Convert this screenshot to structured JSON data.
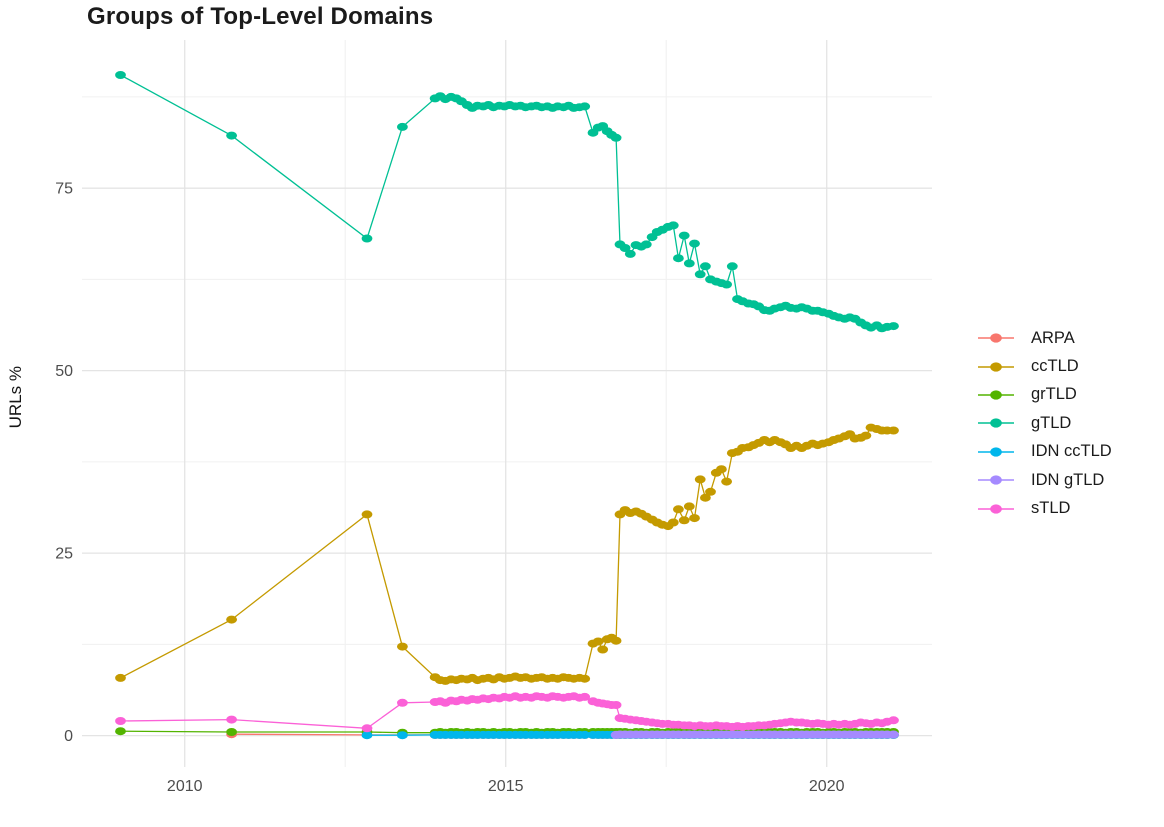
{
  "title": "Groups of Top-Level Domains",
  "chart_data": {
    "type": "line",
    "title": "Groups of Top-Level Domains",
    "xlabel": "",
    "ylabel": "URLs %",
    "legend_position": "right",
    "grid": true,
    "x_range": [
      2008.4,
      2021.64
    ],
    "y_range": [
      -4.3,
      95.3
    ],
    "x_ticks": [
      2010,
      2015,
      2020
    ],
    "x_tick_labels": [
      "2010",
      "2015",
      "2020"
    ],
    "x_minor": [
      2012.5,
      2017.5
    ],
    "y_ticks": [
      0,
      25,
      50,
      75
    ],
    "y_tick_labels": [
      "0",
      "25",
      "50",
      "75"
    ],
    "y_minor": [
      12.5,
      37.5,
      62.5,
      87.5
    ],
    "x": [
      2009,
      2010.73,
      2012.84,
      2013.39,
      2013.9,
      2013.98,
      2014.06,
      2014.15,
      2014.23,
      2014.31,
      2014.4,
      2014.48,
      2014.56,
      2014.65,
      2014.73,
      2014.81,
      2014.9,
      2014.98,
      2015.06,
      2015.15,
      2015.23,
      2015.31,
      2015.4,
      2015.48,
      2015.56,
      2015.65,
      2015.73,
      2015.81,
      2015.9,
      2015.98,
      2016.06,
      2016.15,
      2016.23,
      2016.36,
      2016.44,
      2016.51,
      2016.58,
      2016.65,
      2016.72,
      2016.78,
      2016.86,
      2016.94,
      2017.03,
      2017.11,
      2017.19,
      2017.28,
      2017.36,
      2017.44,
      2017.53,
      2017.61,
      2017.69,
      2017.78,
      2017.86,
      2017.94,
      2018.03,
      2018.11,
      2018.19,
      2018.28,
      2018.36,
      2018.44,
      2018.53,
      2018.61,
      2018.69,
      2018.78,
      2018.86,
      2018.94,
      2019.03,
      2019.11,
      2019.19,
      2019.28,
      2019.36,
      2019.44,
      2019.53,
      2019.61,
      2019.69,
      2019.78,
      2019.86,
      2019.94,
      2020.03,
      2020.11,
      2020.19,
      2020.28,
      2020.36,
      2020.44,
      2020.53,
      2020.61,
      2020.69,
      2020.78,
      2020.86,
      2020.94,
      2021.04
    ],
    "series": [
      {
        "name": "ARPA",
        "color": "#F8766D",
        "values": [
          null,
          0.2,
          0.1,
          0.1,
          0.1,
          0.1,
          0.1,
          0.1,
          0.1,
          0.1,
          0.1,
          0.1,
          0.1,
          0.1,
          0.1,
          0.1,
          0.1,
          0.1,
          0.1,
          0.1,
          0.1,
          0.1,
          0.1,
          0.1,
          0.1,
          0.1,
          0.1,
          0.1,
          0.1,
          0.1,
          0.1,
          0.1,
          0.1,
          0.1,
          0.1,
          0.1,
          0.1,
          0.1,
          0.1,
          0.1,
          0.1,
          0.1,
          0.1,
          0.1,
          0.1,
          0.1,
          0.1,
          0.1,
          0.1,
          0.1,
          0.1,
          0.1,
          0.1,
          0.1,
          0.1,
          0.1,
          0.1,
          0.1,
          0.1,
          0.1,
          0.1,
          0.1,
          0.1,
          0.1,
          0.1,
          0.1,
          0.1,
          0.1,
          0.1,
          0.1,
          0.1,
          0.1,
          0.1,
          0.1,
          0.1,
          0.1,
          0.1,
          0.1,
          0.1,
          0.1,
          0.1,
          0.1,
          0.1,
          0.1,
          0.1,
          0.1,
          0.1,
          0.1,
          0.1,
          0.1,
          0.1
        ]
      },
      {
        "name": "ccTLD",
        "color": "#C49A00",
        "values": [
          7.9,
          15.9,
          30.3,
          12.2,
          8.0,
          7.6,
          7.5,
          7.7,
          7.6,
          7.8,
          7.7,
          7.9,
          7.6,
          7.8,
          7.9,
          7.7,
          8.0,
          7.8,
          7.9,
          8.1,
          7.9,
          8.0,
          7.8,
          7.9,
          8.0,
          7.8,
          7.9,
          7.8,
          8.0,
          7.9,
          7.8,
          7.9,
          7.8,
          12.6,
          12.9,
          11.8,
          13.2,
          13.4,
          13.0,
          30.3,
          30.9,
          30.5,
          30.7,
          30.4,
          30.0,
          29.6,
          29.2,
          28.9,
          28.7,
          29.2,
          31.0,
          29.5,
          31.4,
          29.8,
          35.1,
          32.6,
          33.4,
          36.0,
          36.5,
          34.8,
          38.7,
          38.9,
          39.4,
          39.5,
          39.8,
          40.1,
          40.5,
          40.2,
          40.5,
          40.2,
          39.9,
          39.4,
          39.7,
          39.4,
          39.7,
          40.0,
          39.8,
          40.0,
          40.2,
          40.5,
          40.7,
          41.0,
          41.3,
          40.7,
          40.8,
          41.1,
          42.2,
          42.0,
          41.8,
          41.8,
          41.8
        ]
      },
      {
        "name": "grTLD",
        "color": "#53B400",
        "values": [
          0.6,
          0.5,
          0.5,
          0.4,
          0.4,
          0.5,
          0.4,
          0.5,
          0.5,
          0.4,
          0.5,
          0.4,
          0.5,
          0.5,
          0.4,
          0.5,
          0.4,
          0.5,
          0.5,
          0.4,
          0.5,
          0.5,
          0.4,
          0.5,
          0.4,
          0.5,
          0.5,
          0.4,
          0.5,
          0.5,
          0.4,
          0.5,
          0.5,
          0.5,
          0.5,
          0.5,
          0.5,
          0.5,
          0.5,
          0.5,
          0.5,
          0.4,
          0.5,
          0.5,
          0.4,
          0.5,
          0.5,
          0.4,
          0.5,
          0.5,
          0.5,
          0.4,
          0.5,
          0.5,
          0.4,
          0.5,
          0.4,
          0.5,
          0.5,
          0.4,
          0.5,
          0.5,
          0.5,
          0.4,
          0.5,
          0.5,
          0.4,
          0.5,
          0.5,
          0.5,
          0.4,
          0.5,
          0.5,
          0.4,
          0.5,
          0.5,
          0.5,
          0.4,
          0.5,
          0.5,
          0.4,
          0.5,
          0.5,
          0.5,
          0.4,
          0.5,
          0.5,
          0.5,
          0.5,
          0.5,
          0.5
        ]
      },
      {
        "name": "gTLD",
        "color": "#00C094",
        "values": [
          90.5,
          82.2,
          68.1,
          83.4,
          87.3,
          87.6,
          87.2,
          87.5,
          87.3,
          86.9,
          86.4,
          86.0,
          86.3,
          86.2,
          86.4,
          86.1,
          86.3,
          86.2,
          86.4,
          86.2,
          86.3,
          86.1,
          86.2,
          86.3,
          86.1,
          86.2,
          86.0,
          86.2,
          86.1,
          86.3,
          86.0,
          86.1,
          86.2,
          82.6,
          83.3,
          83.5,
          82.8,
          82.3,
          81.9,
          67.3,
          66.8,
          66.0,
          67.2,
          67.0,
          67.3,
          68.3,
          69.0,
          69.3,
          69.7,
          69.9,
          65.4,
          68.5,
          64.7,
          67.4,
          63.2,
          64.3,
          62.5,
          62.2,
          62.0,
          61.8,
          64.3,
          59.8,
          59.5,
          59.2,
          59.1,
          58.8,
          58.3,
          58.2,
          58.5,
          58.7,
          58.9,
          58.6,
          58.5,
          58.7,
          58.5,
          58.2,
          58.2,
          58.0,
          57.8,
          57.5,
          57.3,
          57.1,
          57.3,
          57.1,
          56.6,
          56.2,
          55.9,
          56.2,
          55.8,
          56.0,
          56.1
        ]
      },
      {
        "name": "IDN ccTLD",
        "color": "#00B6EB",
        "values": [
          null,
          null,
          0.05,
          0.05,
          0.1,
          0.1,
          0.1,
          0.1,
          0.1,
          0.1,
          0.1,
          0.1,
          0.1,
          0.1,
          0.1,
          0.1,
          0.1,
          0.1,
          0.1,
          0.1,
          0.1,
          0.1,
          0.1,
          0.1,
          0.1,
          0.1,
          0.1,
          0.1,
          0.1,
          0.1,
          0.1,
          0.1,
          0.1,
          0.1,
          0.1,
          0.1,
          0.1,
          0.1,
          0.1,
          0.1,
          0.1,
          0.1,
          0.1,
          0.1,
          0.1,
          0.1,
          0.1,
          0.1,
          0.1,
          0.1,
          0.1,
          0.1,
          0.1,
          0.1,
          0.1,
          0.1,
          0.1,
          0.1,
          0.1,
          0.1,
          0.1,
          0.1,
          0.1,
          0.1,
          0.1,
          0.1,
          0.1,
          0.1,
          0.1,
          0.1,
          0.1,
          0.1,
          0.1,
          0.1,
          0.1,
          0.1,
          0.1,
          0.1,
          0.1,
          0.1,
          0.1,
          0.1,
          0.1,
          0.1,
          0.1,
          0.1,
          0.1,
          0.1,
          0.1,
          0.1,
          0.1
        ]
      },
      {
        "name": "IDN gTLD",
        "color": "#A58AFF",
        "values": [
          null,
          null,
          null,
          null,
          null,
          null,
          null,
          null,
          null,
          null,
          null,
          null,
          null,
          null,
          null,
          null,
          null,
          null,
          null,
          null,
          null,
          null,
          null,
          null,
          null,
          null,
          null,
          null,
          null,
          null,
          null,
          null,
          null,
          null,
          null,
          null,
          null,
          null,
          0.1,
          0.15,
          0.15,
          0.15,
          0.15,
          0.15,
          0.15,
          0.15,
          0.15,
          0.15,
          0.15,
          0.15,
          0.15,
          0.15,
          0.15,
          0.15,
          0.15,
          0.15,
          0.15,
          0.15,
          0.15,
          0.15,
          0.15,
          0.15,
          0.15,
          0.15,
          0.15,
          0.15,
          0.15,
          0.15,
          0.15,
          0.15,
          0.15,
          0.15,
          0.15,
          0.15,
          0.15,
          0.15,
          0.15,
          0.15,
          0.15,
          0.15,
          0.15,
          0.15,
          0.15,
          0.15,
          0.15,
          0.15,
          0.15,
          0.15,
          0.15,
          0.15,
          0.15
        ]
      },
      {
        "name": "sTLD",
        "color": "#FB61D7",
        "values": [
          2.0,
          2.2,
          1.0,
          4.5,
          4.6,
          4.7,
          4.5,
          4.8,
          4.7,
          4.9,
          4.8,
          5.0,
          4.9,
          5.1,
          5.0,
          5.2,
          5.1,
          5.3,
          5.2,
          5.4,
          5.2,
          5.3,
          5.2,
          5.4,
          5.3,
          5.2,
          5.4,
          5.3,
          5.2,
          5.3,
          5.4,
          5.2,
          5.3,
          4.7,
          4.5,
          4.4,
          4.3,
          4.2,
          4.2,
          2.4,
          2.3,
          2.2,
          2.1,
          2.0,
          1.9,
          1.8,
          1.7,
          1.6,
          1.6,
          1.5,
          1.5,
          1.4,
          1.4,
          1.3,
          1.4,
          1.3,
          1.3,
          1.4,
          1.3,
          1.3,
          1.2,
          1.3,
          1.2,
          1.3,
          1.3,
          1.4,
          1.4,
          1.5,
          1.6,
          1.7,
          1.8,
          1.9,
          1.8,
          1.8,
          1.7,
          1.6,
          1.7,
          1.6,
          1.5,
          1.6,
          1.5,
          1.6,
          1.5,
          1.6,
          1.8,
          1.7,
          1.6,
          1.8,
          1.7,
          1.9,
          2.1
        ]
      }
    ]
  }
}
